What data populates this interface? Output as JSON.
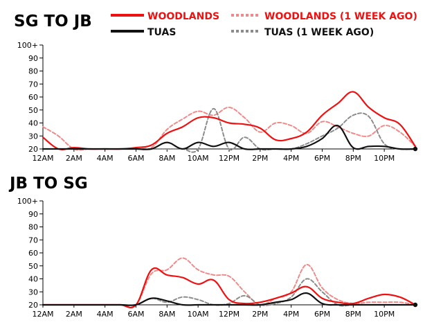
{
  "colors": {
    "woodlands": "#ee1111",
    "woodlands_prev": "#f08a8a",
    "tuas": "#111111",
    "tuas_prev": "#8c8c8c",
    "axis": "#000000"
  },
  "legend": {
    "woodlands": "WOODLANDS",
    "woodlands_prev": "WOODLANDS (1 WEEK AGO)",
    "tuas": "TUAS",
    "tuas_prev": "TUAS (1 WEEK AGO)"
  },
  "chart_data": [
    {
      "type": "line",
      "title": "SG TO JB",
      "xlabel": "",
      "ylabel": "",
      "ylim": [
        20,
        100
      ],
      "yticks": [
        "20",
        "30",
        "40",
        "50",
        "60",
        "70",
        "80",
        "90",
        "100+"
      ],
      "xticks": [
        "12AM",
        "2AM",
        "4AM",
        "6AM",
        "8AM",
        "10AM",
        "12PM",
        "2PM",
        "4PM",
        "6PM",
        "8PM",
        "10PM"
      ],
      "x_hours": [
        0,
        1,
        2,
        3,
        4,
        5,
        6,
        7,
        8,
        9,
        10,
        11,
        12,
        13,
        14,
        15,
        16,
        17,
        18,
        19,
        20,
        21,
        22,
        23,
        24
      ],
      "series": [
        {
          "name": "WOODLANDS (1 WEEK AGO)",
          "key": "woodlands_prev",
          "dashed": true,
          "values": [
            37,
            30,
            20,
            20,
            20,
            20,
            20,
            21,
            35,
            43,
            49,
            46,
            52,
            44,
            33,
            40,
            38,
            32,
            41,
            37,
            32,
            30,
            38,
            33,
            22
          ]
        },
        {
          "name": "TUAS (1 WEEK AGO)",
          "key": "tuas_prev",
          "dashed": true,
          "values": [
            20,
            20,
            20,
            20,
            20,
            20,
            20,
            20,
            20,
            20,
            20,
            51,
            20,
            29,
            20,
            20,
            20,
            24,
            30,
            36,
            46,
            45,
            24,
            20,
            20
          ]
        },
        {
          "name": "WOODLANDS",
          "key": "woodlands",
          "dashed": false,
          "values": [
            29,
            20,
            21,
            20,
            20,
            20,
            21,
            23,
            32,
            37,
            44,
            44,
            40,
            39,
            36,
            27,
            28,
            33,
            46,
            55,
            64,
            52,
            44,
            39,
            22
          ]
        },
        {
          "name": "TUAS",
          "key": "tuas",
          "dashed": false,
          "values": [
            20,
            20,
            20,
            20,
            20,
            20,
            20,
            20,
            25,
            20,
            25,
            22,
            25,
            20,
            20,
            20,
            20,
            22,
            28,
            38,
            21,
            22,
            22,
            20,
            20
          ]
        }
      ]
    },
    {
      "type": "line",
      "title": "JB TO SG",
      "xlabel": "",
      "ylabel": "",
      "ylim": [
        20,
        100
      ],
      "yticks": [
        "20",
        "30",
        "40",
        "50",
        "60",
        "70",
        "80",
        "90",
        "100+"
      ],
      "xticks": [
        "12AM",
        "2AM",
        "4AM",
        "6AM",
        "8AM",
        "10AM",
        "12PM",
        "2PM",
        "4PM",
        "6PM",
        "8PM",
        "10PM"
      ],
      "x_hours": [
        0,
        1,
        2,
        3,
        4,
        5,
        6,
        7,
        8,
        9,
        10,
        11,
        12,
        13,
        14,
        15,
        16,
        17,
        18,
        19,
        20,
        21,
        22,
        23,
        24
      ],
      "series": [
        {
          "name": "WOODLANDS (1 WEEK AGO)",
          "key": "woodlands_prev",
          "dashed": true,
          "values": [
            20,
            20,
            20,
            20,
            20,
            20,
            20,
            44,
            47,
            56,
            47,
            43,
            42,
            30,
            20,
            25,
            30,
            51,
            33,
            24,
            21,
            22,
            22,
            22,
            20
          ]
        },
        {
          "name": "TUAS (1 WEEK AGO)",
          "key": "tuas_prev",
          "dashed": true,
          "values": [
            20,
            20,
            20,
            20,
            20,
            20,
            20,
            25,
            22,
            26,
            24,
            20,
            21,
            27,
            20,
            21,
            26,
            40,
            30,
            20,
            20,
            20,
            20,
            20,
            20
          ]
        },
        {
          "name": "WOODLANDS",
          "key": "woodlands",
          "dashed": false,
          "values": [
            20,
            20,
            20,
            20,
            20,
            20,
            20,
            47,
            43,
            41,
            36,
            39,
            24,
            21,
            22,
            25,
            29,
            34,
            25,
            22,
            21,
            25,
            28,
            26,
            20
          ]
        },
        {
          "name": "TUAS",
          "key": "tuas",
          "dashed": false,
          "values": [
            20,
            20,
            20,
            20,
            20,
            20,
            20,
            25,
            23,
            20,
            20,
            20,
            20,
            20,
            20,
            22,
            24,
            29,
            21,
            20,
            20,
            20,
            20,
            20,
            20
          ]
        }
      ]
    }
  ]
}
